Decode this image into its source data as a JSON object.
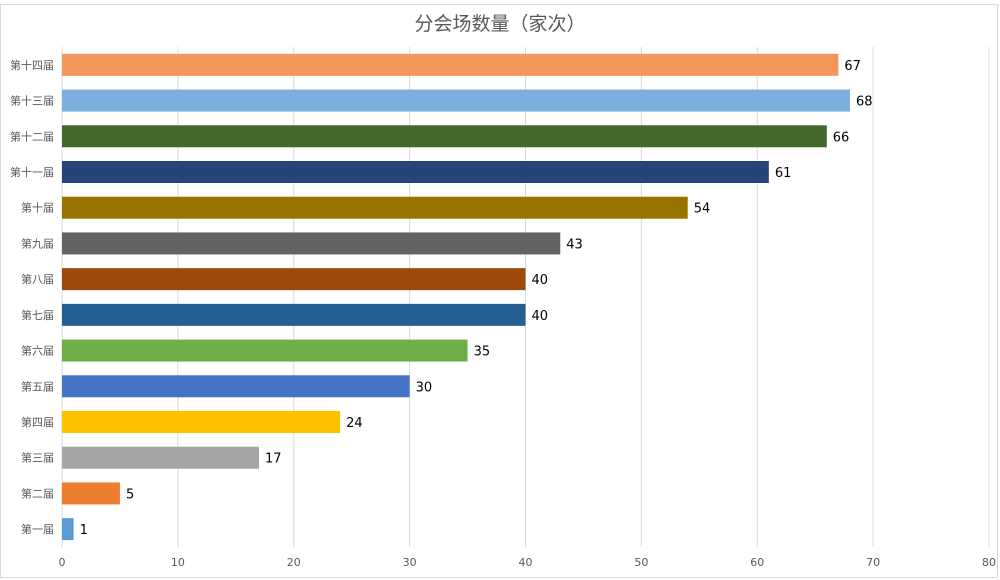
{
  "chart_data": {
    "type": "bar",
    "orientation": "horizontal",
    "title": "分会场数量（家次）",
    "categories": [
      "第一届",
      "第二届",
      "第三届",
      "第四届",
      "第五届",
      "第六届",
      "第七届",
      "第八届",
      "第九届",
      "第十届",
      "第十一届",
      "第十二届",
      "第十三届",
      "第十四届"
    ],
    "values": [
      1,
      5,
      17,
      24,
      30,
      35,
      40,
      40,
      43,
      54,
      61,
      66,
      68,
      67
    ],
    "colors": [
      "#5B9BD5",
      "#ED7D31",
      "#A5A5A5",
      "#FFC000",
      "#4472C4",
      "#70AD47",
      "#255E91",
      "#9E480E",
      "#636363",
      "#997300",
      "#264478",
      "#43682B",
      "#7CAFDD",
      "#F1975A"
    ],
    "xlim": [
      0,
      80
    ],
    "xticks": [
      0,
      10,
      20,
      30,
      40,
      50,
      60,
      70,
      80
    ],
    "xlabel": "",
    "ylabel": "",
    "grid": "vertical",
    "data_labels": true
  }
}
